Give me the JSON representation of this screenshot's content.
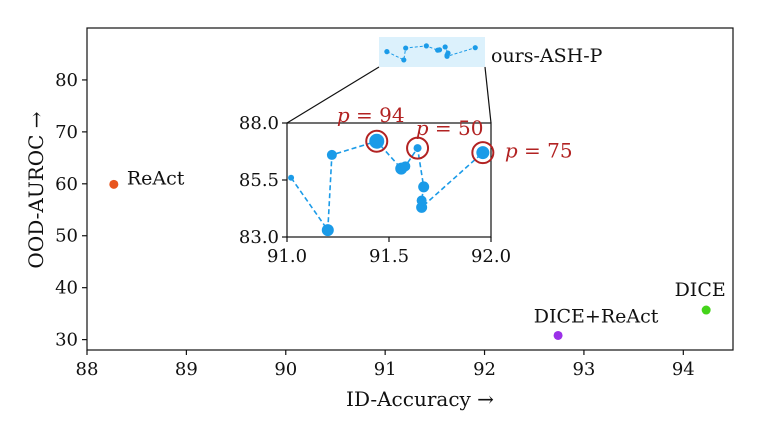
{
  "chart_data": {
    "type": "scatter",
    "xlabel": "ID-Accuracy →",
    "ylabel": "OOD-AUROC →",
    "xlim": [
      88.0,
      94.5
    ],
    "ylim": [
      28,
      90
    ],
    "xticks": [
      "88",
      "89",
      "90",
      "91",
      "92",
      "93",
      "94"
    ],
    "yticks": [
      "30",
      "40",
      "50",
      "60",
      "70",
      "80"
    ],
    "grid": false,
    "points": [
      {
        "name": "ReAct",
        "x": 88.27,
        "y": 59.9,
        "color": "#e8541d"
      },
      {
        "name": "DICE+ReAct",
        "x": 92.74,
        "y": 30.8,
        "color": "#9b30e8"
      },
      {
        "name": "DICE",
        "x": 94.23,
        "y": 35.7,
        "color": "#44d41a"
      }
    ],
    "series_label": "ours-ASH-P",
    "series_color": "#1b9be8",
    "series": [
      {
        "name": "ours-ASH-P",
        "x": [
          91.02,
          91.2,
          91.22,
          91.44,
          91.56,
          91.58,
          91.64,
          91.66,
          91.66,
          91.67,
          91.96
        ],
        "y": [
          85.6,
          83.3,
          86.6,
          87.2,
          86.0,
          86.1,
          86.9,
          84.3,
          84.6,
          85.2,
          86.7
        ]
      }
    ],
    "inset": {
      "xlim": [
        91.0,
        92.0
      ],
      "ylim": [
        83.0,
        88.0
      ],
      "xticks": [
        "91.0",
        "91.5",
        "92.0"
      ],
      "yticks": [
        "83.0",
        "85.5",
        "88.0"
      ]
    },
    "annotations": [
      {
        "prefix": "p",
        "suffix": " = 94",
        "x": 91.44,
        "y": 87.2
      },
      {
        "prefix": "p",
        "suffix": " = 50",
        "x": 91.64,
        "y": 86.9
      },
      {
        "prefix": "p",
        "suffix": " = 75",
        "x": 91.96,
        "y": 86.7
      }
    ]
  }
}
